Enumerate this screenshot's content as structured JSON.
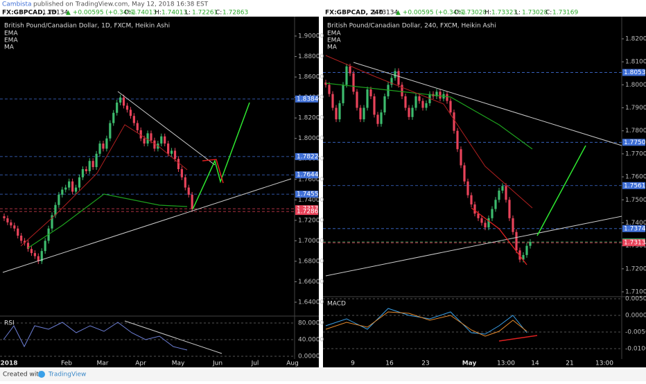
{
  "header": {
    "author": "Cambista",
    "published": "published on TradingView.com, May 12, 2018 16:38 EST"
  },
  "panels": [
    {
      "symbol": "FX:GBPCAD, 1D",
      "last": "1.73134",
      "change": "▲ +0.00595 (+0.34%)",
      "ohlc": [
        {
          "key": "O:",
          "value": "1.74013"
        },
        {
          "key": "H:",
          "value": "1.74013"
        },
        {
          "key": "L:",
          "value": "1.72261"
        },
        {
          "key": "C:",
          "value": "1.72863"
        }
      ],
      "title": "British Pound/Canadian Dollar, 1D, FXCM, Heikin Ashi",
      "indicators": [
        "EMA",
        "EMA",
        "MA"
      ],
      "ylim": [
        1.62917,
        1.90813
      ],
      "yticks": [
        {
          "value": 1.9,
          "label": "1.90000"
        },
        {
          "value": 1.88,
          "label": "1.88000"
        },
        {
          "value": 1.86,
          "label": "1.86000"
        },
        {
          "value": 1.84,
          "label": "1.84000"
        },
        {
          "value": 1.82,
          "label": "1.82000"
        },
        {
          "value": 1.8,
          "label": "1.80000"
        },
        {
          "value": 1.78,
          "label": "1.78000"
        },
        {
          "value": 1.76,
          "label": "1.76000"
        },
        {
          "value": 1.74,
          "label": "1.74000"
        },
        {
          "value": 1.72,
          "label": "1.72000"
        },
        {
          "value": 1.7,
          "label": "1.70000"
        },
        {
          "value": 1.68,
          "label": "1.68000"
        },
        {
          "value": 1.66,
          "label": "1.66000"
        },
        {
          "value": 1.64,
          "label": "1.64000"
        }
      ],
      "price_labels": [
        {
          "value": 1.83849,
          "label": "1.83849",
          "color": "#3f6fd6"
        },
        {
          "value": 1.78227,
          "label": "1.78227",
          "color": "#3f6fd6"
        },
        {
          "value": 1.76442,
          "label": "1.76442",
          "color": "#3f6fd6"
        },
        {
          "value": 1.74555,
          "label": "1.74555",
          "color": "#3f6fd6"
        },
        {
          "value": 1.73134,
          "label": "1.73134",
          "color": "#e8435a"
        },
        {
          "value": 1.72863,
          "label": "1.72863",
          "color": "#e8435a"
        }
      ],
      "closes": [
        1.722,
        1.718,
        1.715,
        1.712,
        1.705,
        1.7,
        1.698,
        1.692,
        1.688,
        1.685,
        1.68,
        1.69,
        1.7,
        1.712,
        1.725,
        1.735,
        1.745,
        1.75,
        1.752,
        1.758,
        1.748,
        1.752,
        1.762,
        1.77,
        1.768,
        1.778,
        1.772,
        1.785,
        1.795,
        1.79,
        1.8,
        1.815,
        1.825,
        1.835,
        1.84,
        1.832,
        1.828,
        1.822,
        1.815,
        1.808,
        1.8,
        1.795,
        1.805,
        1.798,
        1.79,
        1.795,
        1.802,
        1.795,
        1.785,
        1.788,
        1.78,
        1.77,
        1.762,
        1.752,
        1.745,
        1.731
      ],
      "xlabels": [
        "2018",
        "Feb",
        "Mar",
        "Apr",
        "May",
        "Jun",
        "Jul",
        "Aug"
      ],
      "sub": {
        "name": "RSI",
        "ylim": [
          -13.3,
          96.7
        ],
        "yticks": [
          {
            "value": 80,
            "label": "80.0000"
          },
          {
            "value": 40,
            "label": "40.0000"
          },
          {
            "value": 0,
            "label": "0.0000"
          }
        ]
      }
    },
    {
      "symbol": "FX:GBPCAD, 240",
      "last": "1.73134",
      "change": "▲ +0.00595 (+0.34%)",
      "ohlc": [
        {
          "key": "O:",
          "value": "1.73028"
        },
        {
          "key": "H:",
          "value": "1.73323"
        },
        {
          "key": "L:",
          "value": "1.73028"
        },
        {
          "key": "C:",
          "value": "1.73169"
        }
      ],
      "title": "British Pound/Canadian Dollar, 240, FXCM, Heikin Ashi",
      "indicators": [
        "EMA",
        "EMA",
        "MA"
      ],
      "ylim": [
        1.70789,
        1.82482
      ],
      "yticks": [
        {
          "value": 1.82,
          "label": "1.82000"
        },
        {
          "value": 1.81,
          "label": "1.81000"
        },
        {
          "value": 1.8,
          "label": "1.80000"
        },
        {
          "value": 1.79,
          "label": "1.79000"
        },
        {
          "value": 1.78,
          "label": "1.78000"
        },
        {
          "value": 1.77,
          "label": "1.77000"
        },
        {
          "value": 1.76,
          "label": "1.76000"
        },
        {
          "value": 1.75,
          "label": "1.75000"
        },
        {
          "value": 1.74,
          "label": "1.74000"
        },
        {
          "value": 1.73,
          "label": "1.73000"
        },
        {
          "value": 1.72,
          "label": "1.72000"
        },
        {
          "value": 1.71,
          "label": "1.71000"
        }
      ],
      "price_labels": [
        {
          "value": 1.80537,
          "label": "1.80537",
          "color": "#3f6fd6"
        },
        {
          "value": 1.775,
          "label": "1.77500",
          "color": "#3f6fd6"
        },
        {
          "value": 1.75618,
          "label": "1.75618",
          "color": "#3f6fd6"
        },
        {
          "value": 1.73748,
          "label": "1.73748",
          "color": "#3f6fd6"
        },
        {
          "value": 1.73169,
          "label": "1.73169",
          "color": "#3dbb6d"
        },
        {
          "value": 1.73134,
          "label": "1.73134",
          "color": "#e8435a"
        }
      ],
      "closes": [
        1.8,
        1.796,
        1.79,
        1.785,
        1.792,
        1.8,
        1.808,
        1.805,
        1.797,
        1.79,
        1.785,
        1.79,
        1.798,
        1.795,
        1.787,
        1.783,
        1.788,
        1.795,
        1.8,
        1.803,
        1.806,
        1.8,
        1.795,
        1.79,
        1.786,
        1.79,
        1.795,
        1.793,
        1.79,
        1.792,
        1.796,
        1.795,
        1.797,
        1.794,
        1.796,
        1.793,
        1.788,
        1.78,
        1.772,
        1.765,
        1.758,
        1.752,
        1.748,
        1.744,
        1.742,
        1.74,
        1.738,
        1.742,
        1.746,
        1.75,
        1.754,
        1.756,
        1.75,
        1.742,
        1.736,
        1.728,
        1.724,
        1.726,
        1.73,
        1.7317
      ],
      "xlabels": [
        "9",
        "16",
        "23",
        "May",
        "13:00",
        "14",
        "21",
        "13:00"
      ],
      "sub": {
        "name": "MACD",
        "ylim": [
          -0.01396,
          0.005625
        ],
        "yticks": [
          {
            "value": 0.005,
            "label": "0.0050"
          },
          {
            "value": 0,
            "label": "0.0000"
          },
          {
            "value": -0.005,
            "label": "-0.0050"
          },
          {
            "value": -0.01,
            "label": "-0.0100"
          }
        ]
      }
    }
  ],
  "footer": {
    "created": "Created with",
    "brand": "TradingView"
  }
}
